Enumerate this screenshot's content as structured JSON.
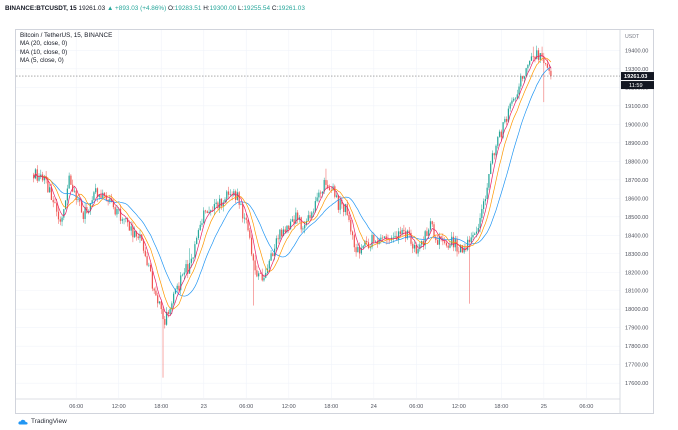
{
  "header": {
    "symbol": "BINANCE:BTCUSDT, 15",
    "last": "19261.03",
    "change": "▲ +893.03 (+4.86%)",
    "o_label": "O:",
    "o_val": "19283.51",
    "h_label": "H:",
    "h_val": "19300.00",
    "l_label": "L:",
    "l_val": "19255.54",
    "c_label": "C:",
    "c_val": "19261.03"
  },
  "legend": {
    "title": "Bitcoin / TetherUS, 15, BINANCE",
    "ma1": "MA (20, close, 0)",
    "ma2": "MA (10, close, 0)",
    "ma3": "MA (5, close, 0)"
  },
  "price_axis": {
    "unit_label": "USDT",
    "last_price_label": "19261.03",
    "countdown_label": "11:59"
  },
  "footer": {
    "brand": "TradingView"
  },
  "colors": {
    "up": "#26a69a",
    "down": "#ef5350",
    "ma20": "#2196f3",
    "ma10": "#ff9800",
    "ma5": "#e91e63",
    "grid": "#f0f3fa",
    "last_price": "#131722"
  },
  "chart_data": {
    "type": "candlestick",
    "title": "Bitcoin / TetherUS, 15, BINANCE",
    "y_unit": "USDT",
    "ylim": [
      17520,
      19510
    ],
    "y_ticks": [
      17600,
      17700,
      17800,
      17900,
      18000,
      18100,
      18200,
      18300,
      18400,
      18500,
      18600,
      18700,
      18800,
      18900,
      19000,
      19100,
      19200,
      19300,
      19400
    ],
    "y_tick_labels": [
      "17600.00",
      "17700.00",
      "17800.00",
      "17900.00",
      "18000.00",
      "18100.00",
      "18200.00",
      "18300.00",
      "18400.00",
      "18500.00",
      "18600.00",
      "18700.00",
      "18800.00",
      "18900.00",
      "19000.00",
      "19100.00",
      "19200.00",
      "19300.00",
      "19400.00"
    ],
    "x_ticks": [
      {
        "label": "06:00",
        "bar": 24
      },
      {
        "label": "12:00",
        "bar": 48
      },
      {
        "label": "18:00",
        "bar": 72
      },
      {
        "label": "23",
        "bar": 96
      },
      {
        "label": "06:00",
        "bar": 120
      },
      {
        "label": "12:00",
        "bar": 144
      },
      {
        "label": "18:00",
        "bar": 168
      },
      {
        "label": "24",
        "bar": 192
      },
      {
        "label": "06:00",
        "bar": 216
      },
      {
        "label": "12:00",
        "bar": 240
      },
      {
        "label": "18:00",
        "bar": 264
      },
      {
        "label": "25",
        "bar": 288
      },
      {
        "label": "06:00",
        "bar": 312
      }
    ],
    "x_domain_bars": [
      -10,
      331
    ],
    "last_price": 19261.03,
    "candle_count": 293,
    "close_anchors": [
      {
        "bar": 0,
        "close": 18740
      },
      {
        "bar": 6,
        "close": 18700
      },
      {
        "bar": 12,
        "close": 18560
      },
      {
        "bar": 16,
        "close": 18470
      },
      {
        "bar": 20,
        "close": 18700
      },
      {
        "bar": 24,
        "close": 18590
      },
      {
        "bar": 28,
        "close": 18510
      },
      {
        "bar": 32,
        "close": 18560
      },
      {
        "bar": 36,
        "close": 18640
      },
      {
        "bar": 40,
        "close": 18600
      },
      {
        "bar": 44,
        "close": 18560
      },
      {
        "bar": 48,
        "close": 18520
      },
      {
        "bar": 52,
        "close": 18460
      },
      {
        "bar": 56,
        "close": 18420
      },
      {
        "bar": 60,
        "close": 18380
      },
      {
        "bar": 64,
        "close": 18260
      },
      {
        "bar": 68,
        "close": 18100
      },
      {
        "bar": 72,
        "close": 17990
      },
      {
        "bar": 74,
        "close": 17920
      },
      {
        "bar": 76,
        "close": 17990
      },
      {
        "bar": 80,
        "close": 18080
      },
      {
        "bar": 84,
        "close": 18180
      },
      {
        "bar": 88,
        "close": 18240
      },
      {
        "bar": 92,
        "close": 18360
      },
      {
        "bar": 96,
        "close": 18500
      },
      {
        "bar": 100,
        "close": 18530
      },
      {
        "bar": 104,
        "close": 18560
      },
      {
        "bar": 108,
        "close": 18610
      },
      {
        "bar": 112,
        "close": 18620
      },
      {
        "bar": 116,
        "close": 18590
      },
      {
        "bar": 120,
        "close": 18460
      },
      {
        "bar": 124,
        "close": 18260
      },
      {
        "bar": 128,
        "close": 18160
      },
      {
        "bar": 132,
        "close": 18220
      },
      {
        "bar": 136,
        "close": 18330
      },
      {
        "bar": 140,
        "close": 18430
      },
      {
        "bar": 144,
        "close": 18440
      },
      {
        "bar": 148,
        "close": 18500
      },
      {
        "bar": 152,
        "close": 18430
      },
      {
        "bar": 156,
        "close": 18510
      },
      {
        "bar": 160,
        "close": 18580
      },
      {
        "bar": 164,
        "close": 18680
      },
      {
        "bar": 168,
        "close": 18650
      },
      {
        "bar": 172,
        "close": 18570
      },
      {
        "bar": 176,
        "close": 18540
      },
      {
        "bar": 180,
        "close": 18400
      },
      {
        "bar": 184,
        "close": 18280
      },
      {
        "bar": 188,
        "close": 18360
      },
      {
        "bar": 192,
        "close": 18380
      },
      {
        "bar": 196,
        "close": 18390
      },
      {
        "bar": 200,
        "close": 18410
      },
      {
        "bar": 204,
        "close": 18380
      },
      {
        "bar": 208,
        "close": 18400
      },
      {
        "bar": 212,
        "close": 18390
      },
      {
        "bar": 216,
        "close": 18330
      },
      {
        "bar": 220,
        "close": 18380
      },
      {
        "bar": 224,
        "close": 18460
      },
      {
        "bar": 228,
        "close": 18380
      },
      {
        "bar": 232,
        "close": 18370
      },
      {
        "bar": 236,
        "close": 18360
      },
      {
        "bar": 240,
        "close": 18340
      },
      {
        "bar": 244,
        "close": 18330
      },
      {
        "bar": 248,
        "close": 18380
      },
      {
        "bar": 252,
        "close": 18480
      },
      {
        "bar": 256,
        "close": 18680
      },
      {
        "bar": 260,
        "close": 18860
      },
      {
        "bar": 264,
        "close": 18950
      },
      {
        "bar": 268,
        "close": 19060
      },
      {
        "bar": 272,
        "close": 19170
      },
      {
        "bar": 276,
        "close": 19250
      },
      {
        "bar": 280,
        "close": 19320
      },
      {
        "bar": 284,
        "close": 19380
      },
      {
        "bar": 288,
        "close": 19330
      },
      {
        "bar": 290,
        "close": 19300
      },
      {
        "bar": 292,
        "close": 19261.03
      }
    ],
    "notable_extremes": [
      {
        "bar": 73,
        "low": 17630
      },
      {
        "bar": 88,
        "high": 18330
      },
      {
        "bar": 124,
        "low": 18020
      },
      {
        "bar": 165,
        "high": 18760
      },
      {
        "bar": 246,
        "low": 18030
      },
      {
        "bar": 282,
        "high": 19420
      },
      {
        "bar": 287,
        "high": 19420
      },
      {
        "bar": 288,
        "low": 19120
      }
    ],
    "series": [
      {
        "name": "MA (20, close, 0)",
        "type": "line",
        "period": 20
      },
      {
        "name": "MA (10, close, 0)",
        "type": "line",
        "period": 10
      },
      {
        "name": "MA (5, close, 0)",
        "type": "line",
        "period": 5
      }
    ]
  }
}
